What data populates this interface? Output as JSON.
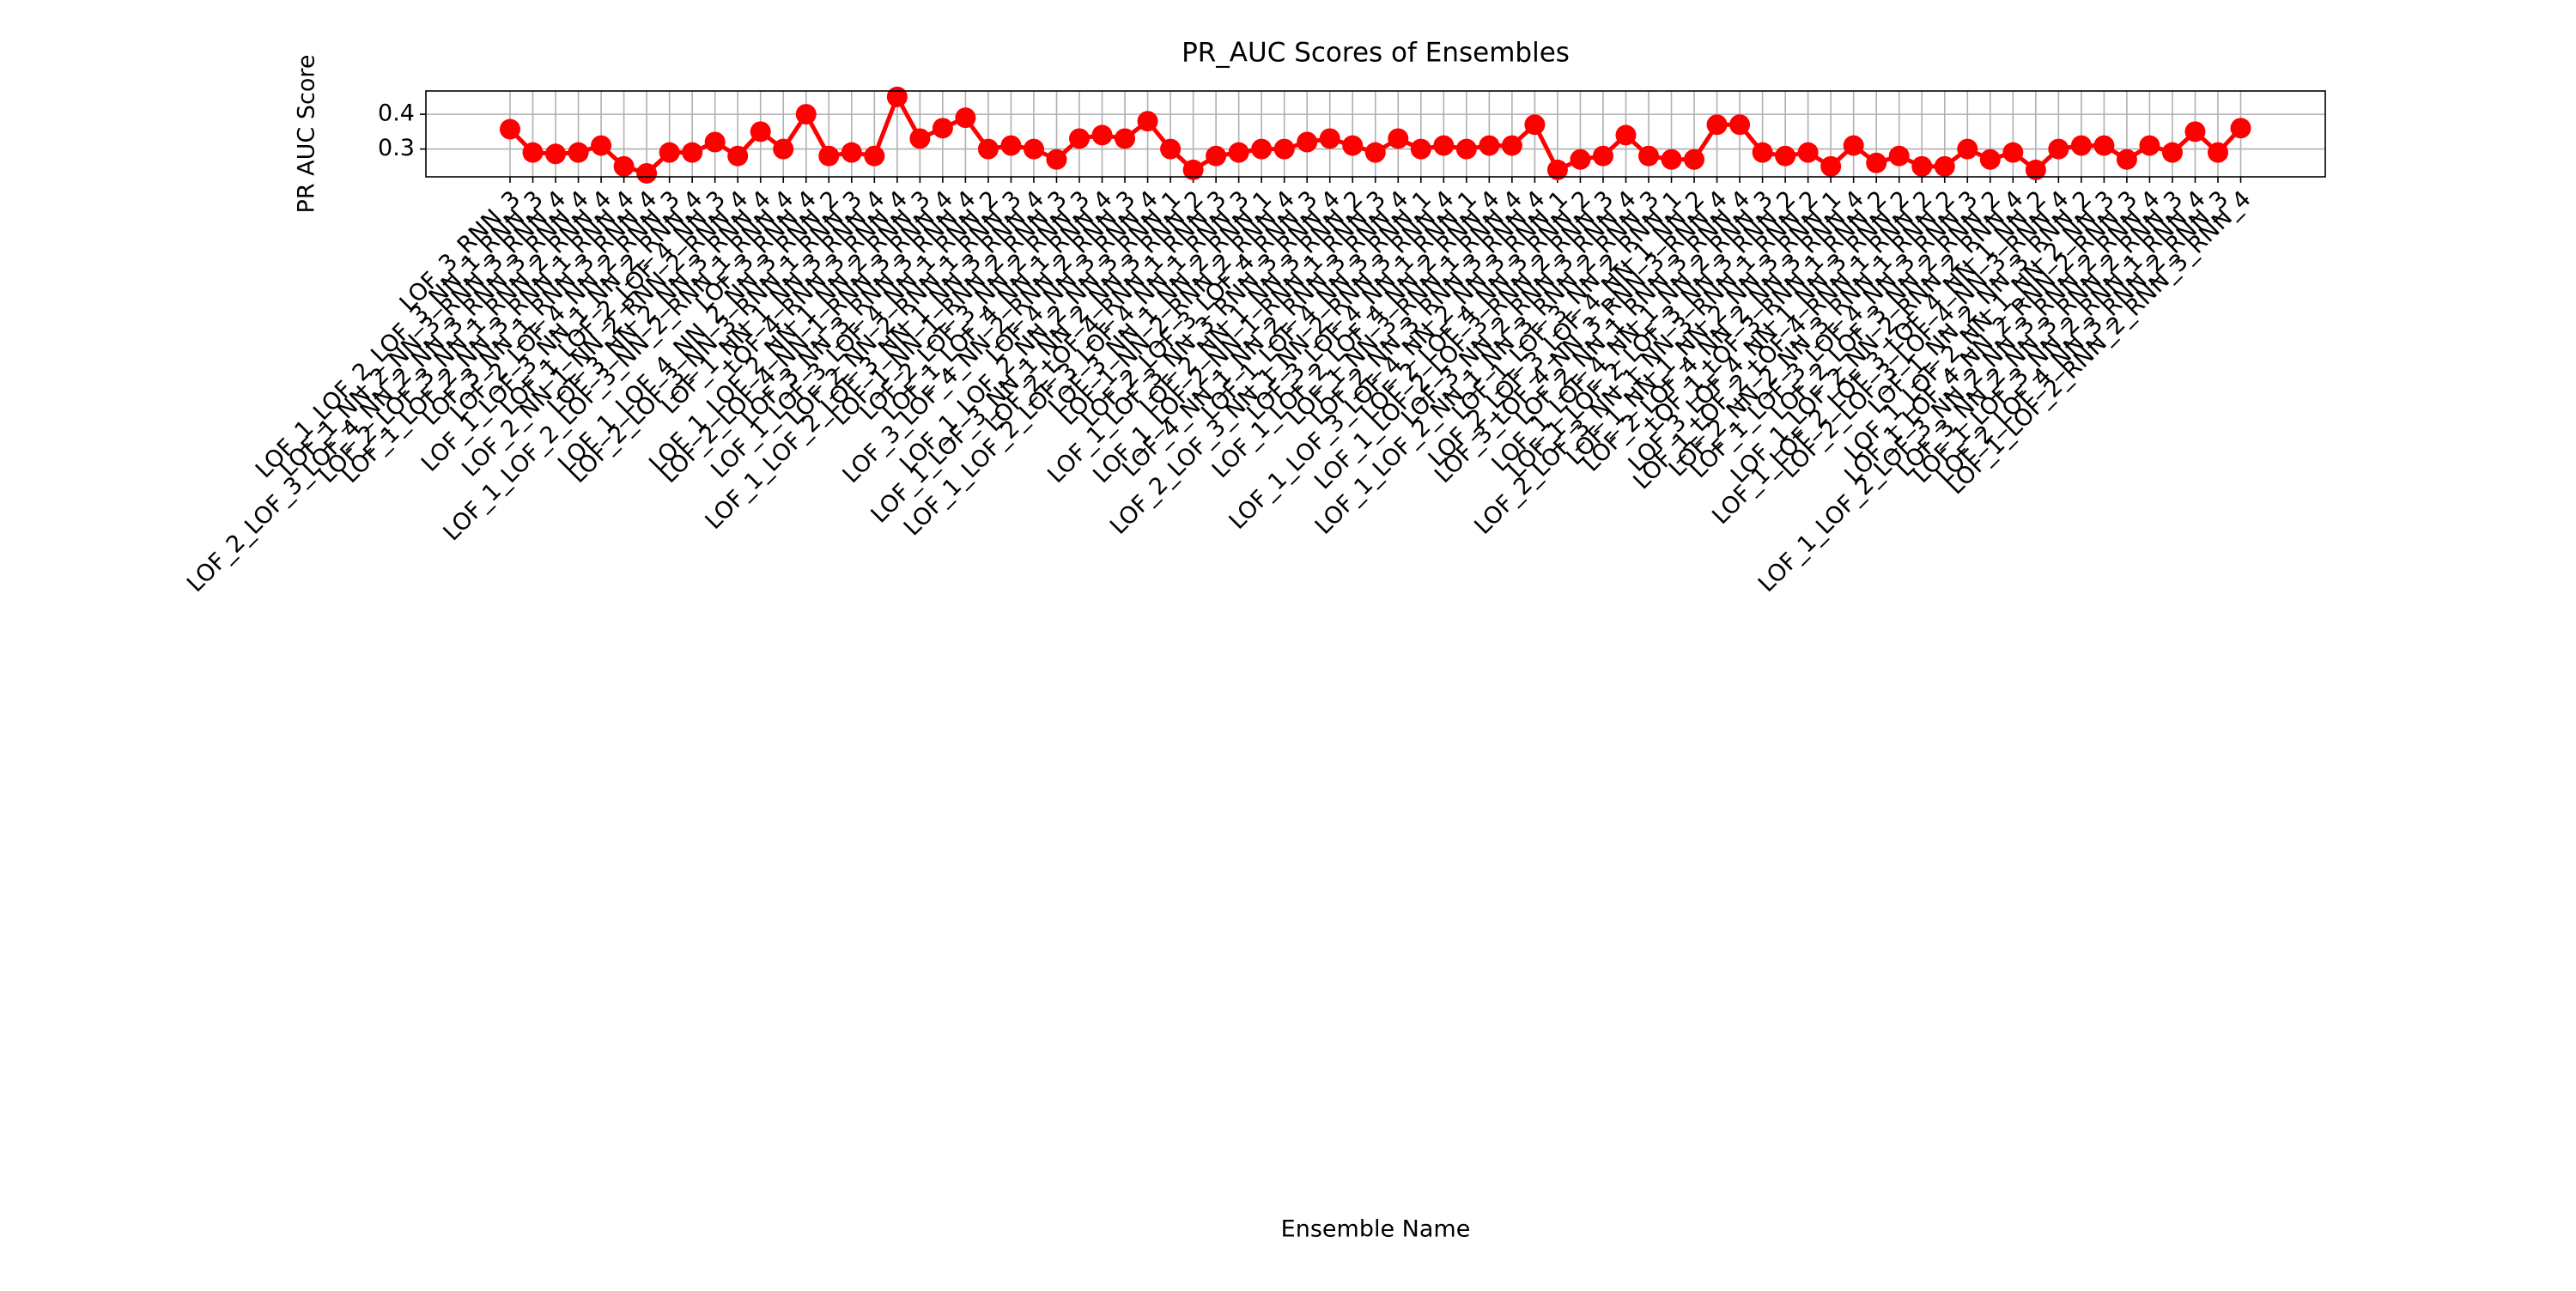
{
  "chart_data": {
    "type": "line",
    "title": "PR_AUC Scores of Ensembles",
    "x_label": "Ensemble Name",
    "y_label": "PR AUC Score",
    "categories": [
      "LOF_3_RNN_3",
      "LOF_1_LOF_2_LOF_3_NN_1_RNN_3",
      "LOF_1_NN_2_NN_3_RNN_3_RNN_4",
      "LOF_2_LOF_3_LOF_4_NN_2_NN_3_RNN_3_RNN_4",
      "LOF_2_LOF_3_NN_1_RNN_2_RNN_4",
      "LOF_1_LOF_2_NN_3_RNN_1_RNN_4",
      "LOF_3_NN_1_RNN_3_RNN_4",
      "LOF_2_LOF_4_NN_2_RNN_3",
      "LOF_1_LOF_3_NN_1_NN_2_RNN_4",
      "LOF_1_LOF_2_LOF_4_NN_3",
      "LOF_2_NN_1_NN_2_RNN_2_RNN_4",
      "LOF_3_NN_2_NN_3_RNN_4",
      "LOF_1_LOF_2_LOF_3_NN_2_RNN_1_RNN_4",
      "LOF_3_RNN_4",
      "LOF_1_LOF_4_NN_2_NN_3_RNN_2",
      "LOF_2_LOF_3_NN_3_RNN_1_RNN_3",
      "LOF_1_NN_1_NN_3_RNN_4",
      "LOF_4_RNN_3_RNN_4",
      "LOF_1_LOF_2_NN_1_NN_2_RNN_3",
      "LOF_2_LOF_4_NN_1_RNN_3_RNN_4",
      "LOF_3_NN_3_RNN_3_RNN_4",
      "LOF_1_LOF_3_LOF_4_NN_1_RNN_2",
      "LOF_2_NN_2_RNN_1_RNN_3",
      "LOF_1_LOF_2_LOF_3_NN_1_NN_3_RNN_4",
      "LOF_1_NN_1_RNN_2_RNN_3",
      "LOF_2_LOF_3_NN_2_RNN_3",
      "LOF_1_LOF_4_NN_1_RNN_4",
      "LOF_3_LOF_4_NN_2_RNN_2_RNN_3",
      "LOF_4_NN_3_RNN_4",
      "LOF_1_LOF_2_NN_2_NN_3_RNN_1",
      "LOF_1_LOF_3_NN_1_NN_2_NN_3_RNN_2",
      "LOF_2_LOF_4_RNN_1_RNN_3",
      "LOF_1_LOF_2_LOF_3_LOF_4_NN_1_RNN_3",
      "LOF_3_NN_1_NN_2_RNN_1",
      "LOF_1_NN_2_RNN_2_RNN_4",
      "LOF_2_LOF_3_LOF_4_RNN_3",
      "LOF_1_LOF_3_NN_3_RNN_3_RNN_4",
      "LOF_2_NN_1_NN_3_RNN_2",
      "LOF_1_LOF_2_NN_1_RNN_1_RNN_3",
      "LOF_4_NN_1_NN_2_RNN_3_RNN_4",
      "LOF_1_LOF_4_NN_3_RNN_1",
      "LOF_2_LOF_3_NN_1_NN_2_RNN_3_RNN_4",
      "LOF_3_LOF_4_NN_1_RNN_1",
      "LOF_1_LOF_2_LOF_4_NN_2_RNN_4",
      "LOF_1_NN_3_RNN_1_RNN_4",
      "LOF_2_NN_3_RNN_3_RNN_4",
      "LOF_1_LOF_3_LOF_4_NN_2_NN_3_RNN_1",
      "LOF_2_LOF_4_NN_3_RNN_2",
      "LOF_1_LOF_2_LOF_3_RNN_2_RNN_3",
      "LOF_3_NN_2_RNN_3_RNN_4",
      "LOF_1_LOF_2_NN_1_NN_3_RNN_2_RNN_3",
      "LOF_1_LOF_3_NN_2_RNN_1",
      "LOF_2_LOF_3_LOF_4_NN_1_NN_2",
      "LOF_3_LOF_4_NN_3_RNN_3_RNN_4",
      "LOF_2_NN_1_RNN_3_RNN_4",
      "LOF_1_LOF_4_NN_1_NN_2_RNN_3",
      "LOF_1_LOF_2_LOF_3_NN_3_RNN_2",
      "LOF_2_LOF_3_NN_1_NN_3_RNN_1_RNN_2",
      "LOF_1_NN_1_NN_2_NN_3_RNN_1",
      "LOF_2_LOF_4_NN_2_NN_3_RNN_4",
      "LOF_1_LOF_3_RNN_1_RNN_2",
      "LOF_3_LOF_4_NN_1_NN_3_RNN_2",
      "LOF_1_LOF_2_LOF_4_RNN_1_RNN_2",
      "LOF_2_NN_2_NN_3_RNN_1_RNN_2",
      "LOF_1_LOF_3_LOF_4_NN_3_RNN_3",
      "LOF_2_LOF_3_NN_2_RNN_2",
      "LOF_1_LOF_2_NN_2_RNN_2_RNN_4",
      "LOF_1_LOF_2_LOF_3_LOF_4_NN_1_NN_2",
      "LOF_2_LOF_3_LOF_4_NN_3_RNN_4",
      "LOF_1_NN_2_NN_3_RNN_2",
      "LOF_1_LOF_2_NN_1_NN_2_NN_3",
      "LOF_1_LOF_4_NN_2_RNN_2_RNN_3",
      "LOF_1_LOF_2_LOF_3_NN_2_NN_3_RNN_2_RNN_4",
      "LOF_3_NN_2_NN_3_RNN_2_RNN_3",
      "LOF_1_LOF_3_NN_2_RNN_1_RNN_4",
      "LOF_2_LOF_4_NN_3_RNN_2_RNN_3",
      "LOF_1_LOF_2_RNN_2_RNN_3_RNN_4"
    ],
    "series": [
      {
        "name": "PR AUC",
        "color": "#ff0000",
        "values": [
          0.357,
          0.29,
          0.286,
          0.29,
          0.31,
          0.25,
          0.23,
          0.29,
          0.29,
          0.32,
          0.28,
          0.35,
          0.3,
          0.4,
          0.28,
          0.29,
          0.28,
          0.45,
          0.33,
          0.36,
          0.39,
          0.3,
          0.31,
          0.3,
          0.27,
          0.33,
          0.34,
          0.33,
          0.38,
          0.3,
          0.24,
          0.28,
          0.29,
          0.3,
          0.3,
          0.32,
          0.33,
          0.31,
          0.29,
          0.33,
          0.3,
          0.31,
          0.3,
          0.31,
          0.31,
          0.37,
          0.24,
          0.27,
          0.28,
          0.34,
          0.28,
          0.27,
          0.27,
          0.37,
          0.37,
          0.29,
          0.28,
          0.29,
          0.25,
          0.31,
          0.26,
          0.28,
          0.25,
          0.25,
          0.3,
          0.27,
          0.29,
          0.24,
          0.3,
          0.31,
          0.31,
          0.27,
          0.31,
          0.29,
          0.35,
          0.29,
          0.36
        ]
      }
    ],
    "ylim": [
      0.22,
      0.467
    ],
    "yticks": [
      0.3,
      0.4
    ],
    "grid": true
  }
}
